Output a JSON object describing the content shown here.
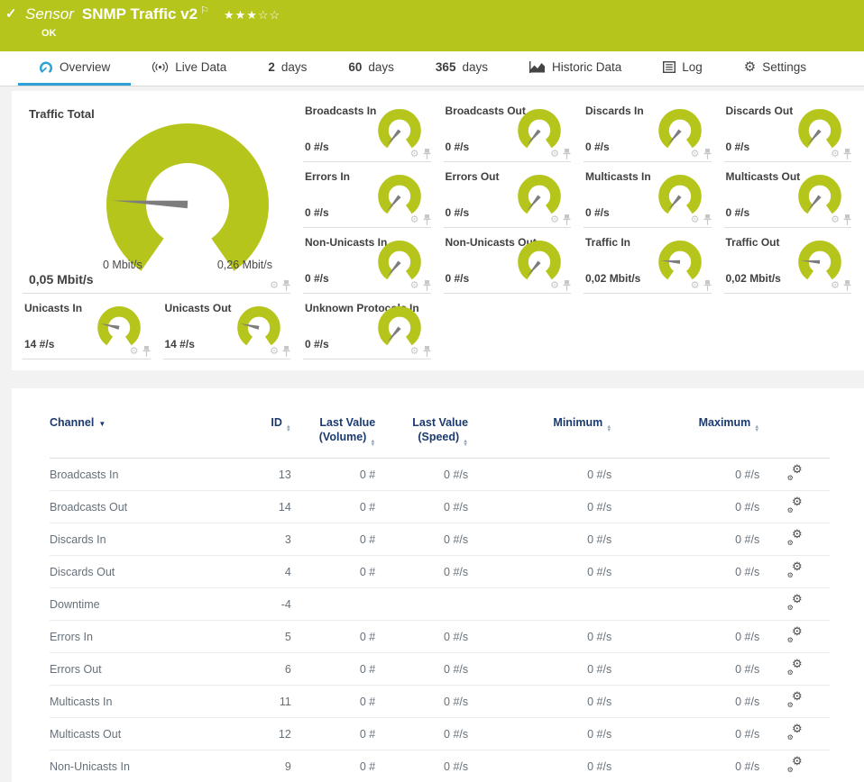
{
  "colors": {
    "green": "#b5c51c",
    "blue": "#2da0d6",
    "navy": "#1b3a70",
    "needle": "#7d7d7d"
  },
  "icons": {
    "check": "✓",
    "flag": "⚐",
    "gear": "⚙",
    "caret_down": "▼",
    "sort_up": "▲",
    "sort_down": "▼"
  },
  "header": {
    "kind": "Sensor",
    "title": "SNMP Traffic v2",
    "stars_filled": "★★★",
    "stars_empty": "☆☆",
    "status": "OK"
  },
  "tabs": [
    {
      "label": "Overview",
      "icon": "overview-gauge-icon",
      "active": true
    },
    {
      "label": "Live Data",
      "icon": "live-data-icon"
    },
    {
      "num": "2",
      "suffix": "days"
    },
    {
      "num": "60",
      "suffix": "days"
    },
    {
      "num": "365",
      "suffix": "days"
    },
    {
      "label": "Historic Data",
      "icon": "historic-data-icon"
    },
    {
      "label": "Log",
      "icon": "log-icon"
    },
    {
      "label": "Settings",
      "icon": "settings-gear-icon"
    }
  ],
  "main_gauge": {
    "title": "Traffic Total",
    "value": "0,05 Mbit/s",
    "scale_min": "0 Mbit/s",
    "scale_max": "0,26 Mbit/s",
    "needle_deg": 183
  },
  "small_gauges": [
    {
      "title": "Broadcasts In",
      "value": "0 #/s",
      "needle_deg": 130
    },
    {
      "title": "Broadcasts Out",
      "value": "0 #/s",
      "needle_deg": 130
    },
    {
      "title": "Discards In",
      "value": "0 #/s",
      "needle_deg": 130
    },
    {
      "title": "Discards Out",
      "value": "0 #/s",
      "needle_deg": 130
    },
    {
      "title": "Errors In",
      "value": "0 #/s",
      "needle_deg": 130
    },
    {
      "title": "Errors Out",
      "value": "0 #/s",
      "needle_deg": 130
    },
    {
      "title": "Multicasts In",
      "value": "0 #/s",
      "needle_deg": 130
    },
    {
      "title": "Multicasts Out",
      "value": "0 #/s",
      "needle_deg": 130
    },
    {
      "title": "Non-Unicasts In",
      "value": "0 #/s",
      "needle_deg": 130
    },
    {
      "title": "Non-Unicasts Out",
      "value": "0 #/s",
      "needle_deg": 130
    },
    {
      "title": "Traffic In",
      "value": "0,02 Mbit/s",
      "needle_deg": 184
    },
    {
      "title": "Traffic Out",
      "value": "0,02 Mbit/s",
      "needle_deg": 184
    },
    {
      "title": "Unicasts In",
      "value": "14 #/s",
      "needle_deg": 193
    },
    {
      "title": "Unicasts Out",
      "value": "14 #/s",
      "needle_deg": 193
    },
    {
      "title": "Unknown Protocols In",
      "value": "0 #/s",
      "needle_deg": 130
    }
  ],
  "table": {
    "headers": {
      "channel": "Channel",
      "id": "ID",
      "last_volume_line1": "Last Value",
      "last_volume_line2": "(Volume)",
      "last_speed_line1": "Last Value",
      "last_speed_line2": "(Speed)",
      "minimum": "Minimum",
      "maximum": "Maximum"
    },
    "rows": [
      {
        "channel": "Broadcasts In",
        "id": "13",
        "volume": "0 #",
        "speed": "0 #/s",
        "min": "0 #/s",
        "max": "0 #/s"
      },
      {
        "channel": "Broadcasts Out",
        "id": "14",
        "volume": "0 #",
        "speed": "0 #/s",
        "min": "0 #/s",
        "max": "0 #/s"
      },
      {
        "channel": "Discards In",
        "id": "3",
        "volume": "0 #",
        "speed": "0 #/s",
        "min": "0 #/s",
        "max": "0 #/s"
      },
      {
        "channel": "Discards Out",
        "id": "4",
        "volume": "0 #",
        "speed": "0 #/s",
        "min": "0 #/s",
        "max": "0 #/s"
      },
      {
        "channel": "Downtime",
        "id": "-4",
        "volume": "",
        "speed": "",
        "min": "",
        "max": ""
      },
      {
        "channel": "Errors In",
        "id": "5",
        "volume": "0 #",
        "speed": "0 #/s",
        "min": "0 #/s",
        "max": "0 #/s"
      },
      {
        "channel": "Errors Out",
        "id": "6",
        "volume": "0 #",
        "speed": "0 #/s",
        "min": "0 #/s",
        "max": "0 #/s"
      },
      {
        "channel": "Multicasts In",
        "id": "11",
        "volume": "0 #",
        "speed": "0 #/s",
        "min": "0 #/s",
        "max": "0 #/s"
      },
      {
        "channel": "Multicasts Out",
        "id": "12",
        "volume": "0 #",
        "speed": "0 #/s",
        "min": "0 #/s",
        "max": "0 #/s"
      },
      {
        "channel": "Non-Unicasts In",
        "id": "9",
        "volume": "0 #",
        "speed": "0 #/s",
        "min": "0 #/s",
        "max": "0 #/s"
      }
    ]
  }
}
